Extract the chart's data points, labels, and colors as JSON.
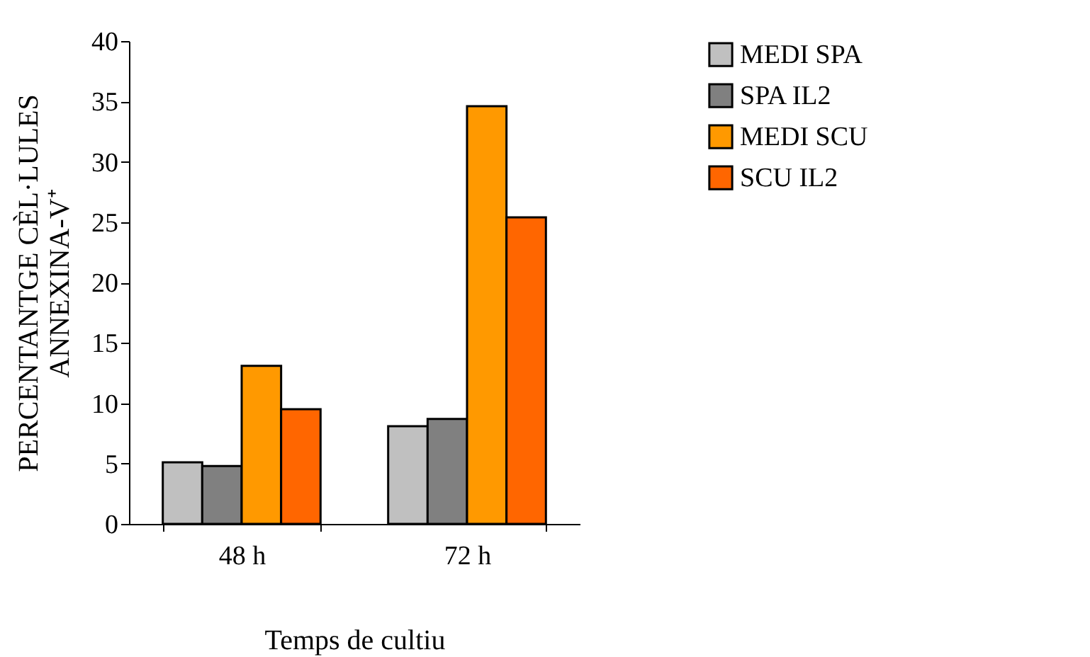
{
  "chart_data": {
    "type": "bar",
    "xlabel": "Temps de cultiu",
    "ylabel": "PERCENTANTGE CÈL·LULES\nANNEXINA-V⁺",
    "categories": [
      "48 h",
      "72 h"
    ],
    "series": [
      {
        "name": "MEDI SPA",
        "color": "#c0c0c0",
        "values": [
          5.1,
          8.1
        ]
      },
      {
        "name": "SPA IL2",
        "color": "#808080",
        "values": [
          4.8,
          8.7
        ]
      },
      {
        "name": "MEDI SCU",
        "color": "#ff9900",
        "values": [
          13.1,
          34.6
        ]
      },
      {
        "name": "SCU IL2",
        "color": "#ff6600",
        "values": [
          9.5,
          25.4
        ]
      }
    ],
    "ylim": [
      0,
      40
    ],
    "yticks": [
      0,
      5,
      10,
      15,
      20,
      25,
      30,
      35,
      40
    ],
    "grid": false,
    "legend": "right"
  }
}
